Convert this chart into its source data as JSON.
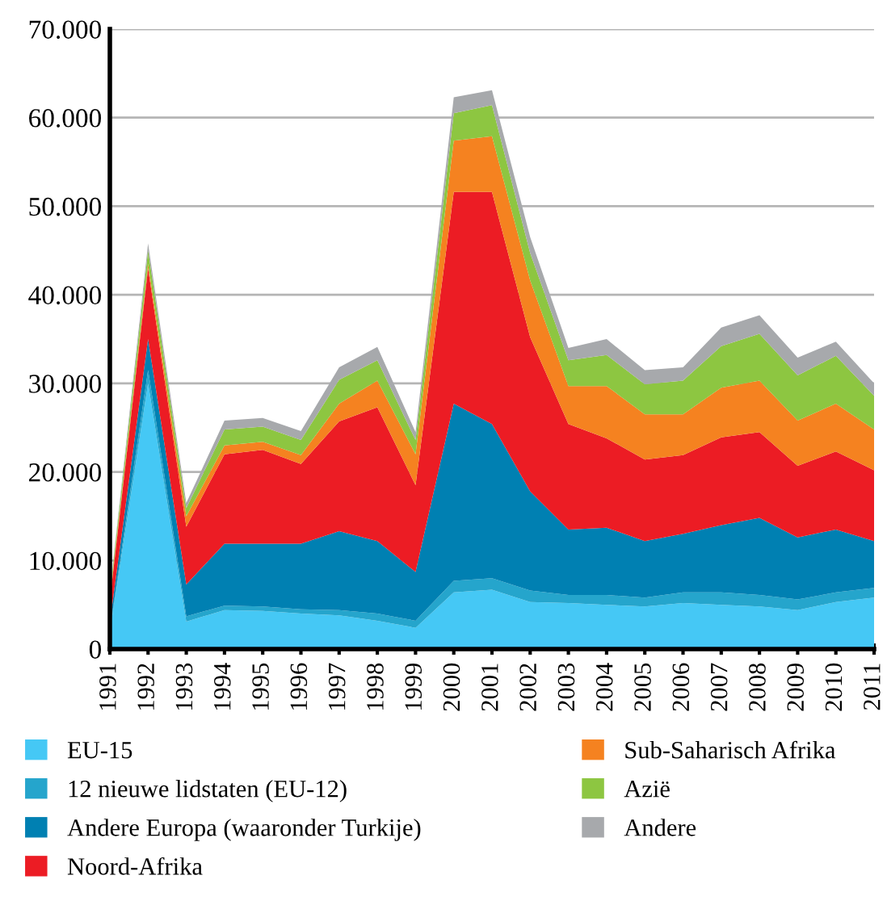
{
  "chart_data": {
    "type": "area",
    "stacked": true,
    "x": [
      1991,
      1992,
      1993,
      1994,
      1995,
      1996,
      1997,
      1998,
      1999,
      2000,
      2001,
      2002,
      2003,
      2004,
      2005,
      2006,
      2007,
      2008,
      2009,
      2010,
      2011
    ],
    "xlim": [
      1991,
      2011
    ],
    "xticks": [
      1991,
      1992,
      1993,
      1994,
      1995,
      1996,
      1997,
      1998,
      1999,
      2000,
      2001,
      2002,
      2003,
      2004,
      2005,
      2006,
      2007,
      2008,
      2009,
      2010,
      2011
    ],
    "ylim": [
      0,
      70000
    ],
    "yticks": [
      {
        "value": 0,
        "label": "0"
      },
      {
        "value": 10000,
        "label": "10.000"
      },
      {
        "value": 20000,
        "label": "20.000"
      },
      {
        "value": 30000,
        "label": "30.000"
      },
      {
        "value": 40000,
        "label": "40.000"
      },
      {
        "value": 50000,
        "label": "50.000"
      },
      {
        "value": 60000,
        "label": "60.000"
      },
      {
        "value": 70000,
        "label": "70.000"
      }
    ],
    "grid": "y",
    "legend": "bottom",
    "series": [
      {
        "name": "EU-15",
        "color": "#45c8f5",
        "values": [
          2000,
          30000,
          3100,
          4400,
          4300,
          4000,
          3800,
          3200,
          2400,
          6400,
          6700,
          5300,
          5200,
          5000,
          4800,
          5200,
          5000,
          4800,
          4400,
          5300,
          5800
        ]
      },
      {
        "name": "12 nieuwe lidstaten (EU-12)",
        "color": "#25a5cc",
        "values": [
          200,
          1500,
          600,
          500,
          500,
          500,
          600,
          800,
          800,
          1300,
          1300,
          1300,
          900,
          1100,
          1000,
          1200,
          1400,
          1300,
          1200,
          1100,
          1100
        ]
      },
      {
        "name": "Andere Europa (waaronder Turkije)",
        "color": "#0080b2",
        "values": [
          800,
          3500,
          3600,
          7000,
          7100,
          7400,
          8900,
          8200,
          5500,
          20000,
          17400,
          11200,
          7400,
          7600,
          6400,
          6600,
          7600,
          8700,
          7000,
          7100,
          5300
        ]
      },
      {
        "name": "Noord-Afrika",
        "color": "#ec1c24",
        "values": [
          2500,
          8000,
          6500,
          10100,
          10600,
          9000,
          12400,
          15100,
          9800,
          23900,
          26200,
          17400,
          11900,
          10100,
          9200,
          8900,
          9900,
          9700,
          8100,
          8800,
          8000
        ]
      },
      {
        "name": "Sub-Saharisch Afrika",
        "color": "#f58220",
        "values": [
          300,
          500,
          1200,
          1000,
          900,
          1000,
          2000,
          3000,
          3500,
          5800,
          6300,
          6400,
          4300,
          5900,
          5100,
          4600,
          5600,
          5800,
          5100,
          5400,
          4600
        ]
      },
      {
        "name": "Azië",
        "color": "#8dc641",
        "values": [
          500,
          1500,
          900,
          1800,
          1700,
          1700,
          2700,
          2300,
          1600,
          3100,
          3500,
          3100,
          2900,
          3500,
          3400,
          3800,
          4700,
          5300,
          5100,
          5400,
          3800
        ]
      },
      {
        "name": "Andere",
        "color": "#a7a9ac",
        "values": [
          200,
          800,
          600,
          1000,
          1000,
          1000,
          1400,
          1500,
          900,
          1800,
          1700,
          1800,
          1400,
          1800,
          1600,
          1500,
          2100,
          2100,
          2000,
          1600,
          1400
        ]
      }
    ]
  }
}
